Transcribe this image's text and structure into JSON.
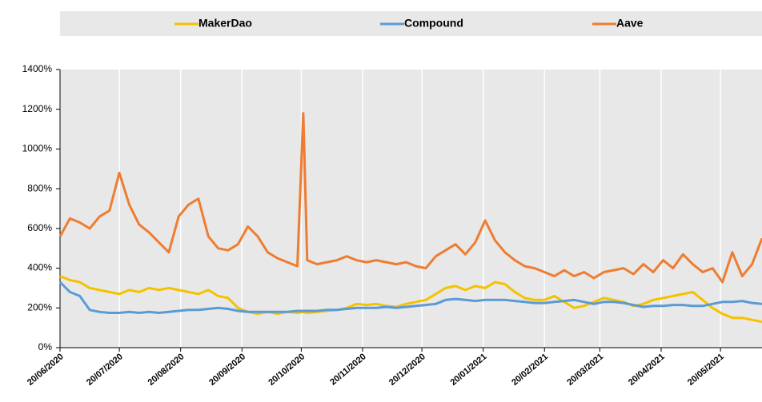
{
  "chart_data": {
    "type": "line",
    "x": [
      "20/06/2020",
      "25/06/2020",
      "30/06/2020",
      "05/07/2020",
      "10/07/2020",
      "15/07/2020",
      "20/07/2020",
      "25/07/2020",
      "30/07/2020",
      "04/08/2020",
      "09/08/2020",
      "14/08/2020",
      "19/08/2020",
      "24/08/2020",
      "29/08/2020",
      "03/09/2020",
      "08/09/2020",
      "13/09/2020",
      "18/09/2020",
      "23/09/2020",
      "28/09/2020",
      "03/10/2020",
      "08/10/2020",
      "13/10/2020",
      "18/10/2020",
      "21/10/2020",
      "23/10/2020",
      "28/10/2020",
      "02/11/2020",
      "07/11/2020",
      "12/11/2020",
      "17/11/2020",
      "22/11/2020",
      "27/11/2020",
      "02/12/2020",
      "07/12/2020",
      "12/12/2020",
      "17/12/2020",
      "22/12/2020",
      "27/12/2020",
      "01/01/2021",
      "06/01/2021",
      "11/01/2021",
      "16/01/2021",
      "21/01/2021",
      "26/01/2021",
      "31/01/2021",
      "05/02/2021",
      "10/02/2021",
      "15/02/2021",
      "20/02/2021",
      "25/02/2021",
      "02/03/2021",
      "07/03/2021",
      "12/03/2021",
      "17/03/2021",
      "22/03/2021",
      "27/03/2021",
      "01/04/2021",
      "06/04/2021",
      "11/04/2021",
      "16/04/2021",
      "21/04/2021",
      "26/04/2021",
      "01/05/2021",
      "06/05/2021",
      "11/05/2021",
      "16/05/2021",
      "21/05/2021",
      "26/05/2021",
      "31/05/2021",
      "05/06/2021",
      "10/06/2021"
    ],
    "series": [
      {
        "name": "MakerDao",
        "color": "#f5c200",
        "values": [
          360,
          340,
          330,
          300,
          290,
          280,
          270,
          290,
          280,
          300,
          290,
          300,
          290,
          280,
          270,
          290,
          260,
          250,
          200,
          180,
          170,
          180,
          170,
          180,
          175,
          180,
          175,
          180,
          185,
          190,
          200,
          220,
          215,
          220,
          210,
          205,
          220,
          230,
          240,
          270,
          300,
          310,
          290,
          310,
          300,
          330,
          320,
          280,
          250,
          240,
          240,
          260,
          230,
          200,
          210,
          230,
          250,
          240,
          230,
          210,
          220,
          240,
          250,
          260,
          270,
          280,
          240,
          200,
          170,
          150,
          150,
          140,
          130
        ]
      },
      {
        "name": "Compound",
        "color": "#5b9bd5",
        "values": [
          330,
          280,
          260,
          190,
          180,
          175,
          175,
          180,
          175,
          180,
          175,
          180,
          185,
          190,
          190,
          195,
          200,
          195,
          185,
          180,
          180,
          180,
          180,
          180,
          185,
          185,
          185,
          185,
          190,
          190,
          195,
          200,
          200,
          200,
          205,
          200,
          205,
          210,
          215,
          220,
          240,
          245,
          240,
          235,
          240,
          240,
          240,
          235,
          230,
          225,
          225,
          230,
          235,
          240,
          230,
          220,
          230,
          230,
          225,
          215,
          205,
          210,
          210,
          215,
          215,
          210,
          210,
          220,
          230,
          230,
          235,
          225,
          220
        ]
      },
      {
        "name": "Aave",
        "color": "#ed7d31",
        "values": [
          560,
          650,
          630,
          600,
          660,
          690,
          880,
          720,
          620,
          580,
          530,
          480,
          660,
          720,
          750,
          560,
          500,
          490,
          520,
          610,
          560,
          480,
          450,
          430,
          410,
          1180,
          440,
          420,
          430,
          440,
          460,
          440,
          430,
          440,
          430,
          420,
          430,
          410,
          400,
          460,
          490,
          520,
          470,
          530,
          640,
          540,
          480,
          440,
          410,
          400,
          380,
          360,
          390,
          360,
          380,
          350,
          380,
          390,
          400,
          370,
          420,
          380,
          440,
          400,
          470,
          420,
          380,
          400,
          330,
          480,
          360,
          420,
          550
        ]
      }
    ],
    "xlim": [
      "20/06/2020",
      "10/06/2021"
    ],
    "xticks": [
      "20/06/2020",
      "20/07/2020",
      "20/08/2020",
      "20/09/2020",
      "20/10/2020",
      "20/11/2020",
      "20/12/2020",
      "20/01/2021",
      "20/02/2021",
      "20/03/2021",
      "20/04/2021",
      "20/05/2021"
    ],
    "ylim": [
      0,
      1400
    ],
    "yticks": [
      {
        "value": 0,
        "label": "0%"
      },
      {
        "value": 200,
        "label": "200%"
      },
      {
        "value": 400,
        "label": "400%"
      },
      {
        "value": 600,
        "label": "600%"
      },
      {
        "value": 800,
        "label": "800%"
      },
      {
        "value": 1000,
        "label": "1000%"
      },
      {
        "value": 1200,
        "label": "1200%"
      },
      {
        "value": 1400,
        "label": "1400%"
      }
    ],
    "grid": true
  }
}
